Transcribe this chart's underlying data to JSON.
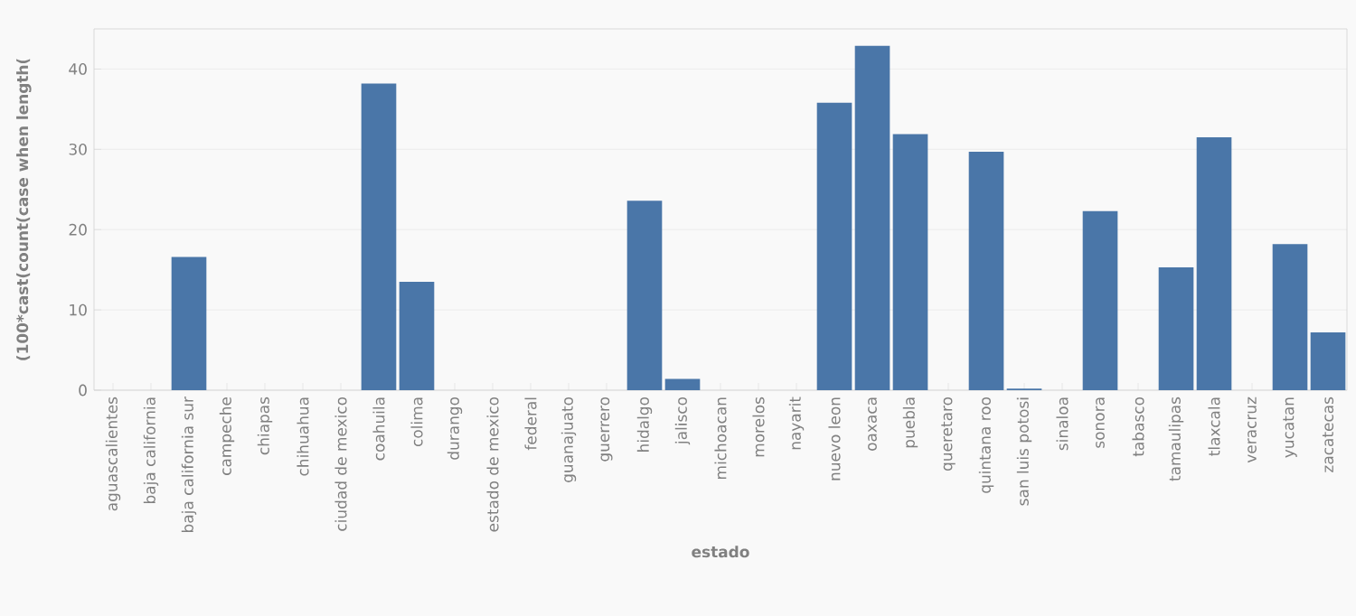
{
  "chart_data": {
    "type": "bar",
    "xlabel": "estado",
    "ylabel": "(100*cast(count(case when length(",
    "categories": [
      "aguascalientes",
      "baja california",
      "baja california sur",
      "campeche",
      "chiapas",
      "chihuahua",
      "ciudad de mexico",
      "coahuila",
      "colima",
      "durango",
      "estado de mexico",
      "federal",
      "guanajuato",
      "guerrero",
      "hidalgo",
      "jalisco",
      "michoacan",
      "morelos",
      "nayarit",
      "nuevo leon",
      "oaxaca",
      "puebla",
      "queretaro",
      "quintana roo",
      "san luis potosi",
      "sinaloa",
      "sonora",
      "tabasco",
      "tamaulipas",
      "tlaxcala",
      "veracruz",
      "yucatan",
      "zacatecas"
    ],
    "values": [
      0,
      0,
      16.6,
      0,
      0,
      0,
      0,
      38.2,
      13.5,
      0,
      0,
      0,
      0,
      0,
      23.6,
      1.4,
      0,
      0,
      0,
      35.8,
      42.9,
      31.9,
      0,
      29.7,
      0.2,
      0,
      22.3,
      0,
      15.3,
      31.5,
      0,
      18.2,
      7.2
    ],
    "color": "#4a76a8",
    "ylim": [
      0,
      45
    ],
    "yticks": [
      0,
      10,
      20,
      30,
      40
    ],
    "grid": "y"
  }
}
